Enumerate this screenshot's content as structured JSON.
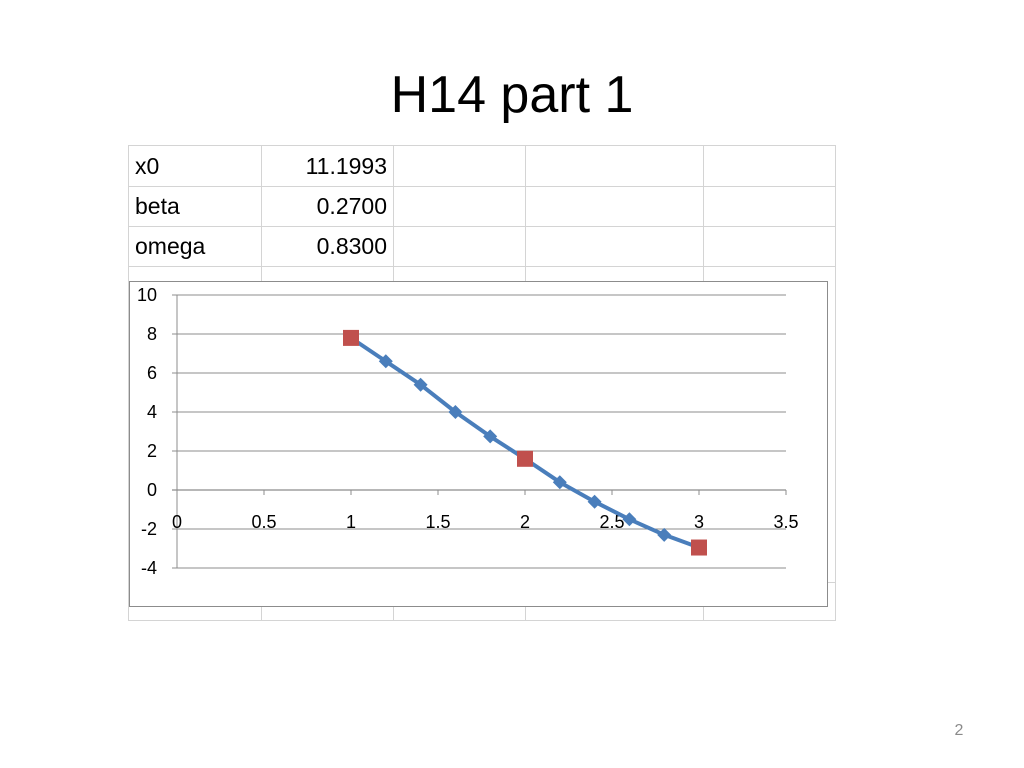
{
  "slide": {
    "title": "H14 part 1",
    "page_number": "2"
  },
  "sheet": {
    "rows": [
      {
        "label": "x0",
        "value": "11.1993"
      },
      {
        "label": "beta",
        "value": "0.2700"
      },
      {
        "label": "omega",
        "value": "0.8300"
      }
    ]
  },
  "chart_data": {
    "type": "line",
    "x_ticks": [
      "0",
      "0.5",
      "1",
      "1.5",
      "2",
      "2.5",
      "3",
      "3.5"
    ],
    "y_ticks": [
      "10",
      "8",
      "6",
      "4",
      "2",
      "0",
      "-2",
      "-4"
    ],
    "xlim": [
      0,
      3.5
    ],
    "ylim": [
      -4,
      10
    ],
    "grid": "horizontal",
    "legend": "none",
    "series": [
      {
        "marker": "diamond",
        "color": "#4a7ebb",
        "x": [
          1.0,
          1.2,
          1.4,
          1.6,
          1.8,
          2.0,
          2.2,
          2.4,
          2.6,
          2.8,
          3.0
        ],
        "y": [
          7.8,
          6.6,
          5.4,
          4.0,
          2.75,
          1.6,
          0.4,
          -0.6,
          -1.5,
          -2.3,
          -2.95
        ]
      },
      {
        "marker": "square",
        "color": "#c0504d",
        "x": [
          1.0,
          2.0,
          3.0
        ],
        "y": [
          7.8,
          1.6,
          -2.95
        ]
      }
    ]
  }
}
